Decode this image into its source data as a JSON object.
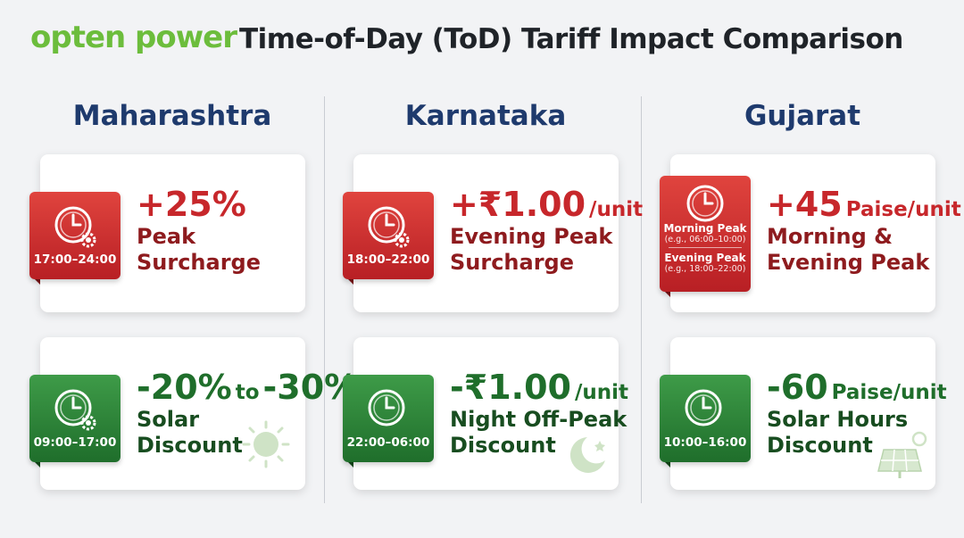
{
  "header": {
    "logo": "opten power",
    "title": "Time-of-Day (ToD) Tariff Impact Comparison"
  },
  "columns": [
    {
      "state": "Maharashtra",
      "cards": [
        {
          "kind": "peak",
          "badge": "17:00–24:00",
          "headline": [
            "+25%"
          ],
          "label": [
            "Peak",
            "Surcharge"
          ]
        },
        {
          "kind": "offpeak",
          "badge": "09:00–17:00",
          "headline": [
            "-20%",
            "to",
            "-30%"
          ],
          "label": [
            "Solar",
            "Discount"
          ]
        }
      ]
    },
    {
      "state": "Karnataka",
      "cards": [
        {
          "kind": "peak",
          "badge": "18:00–22:00",
          "headline": [
            "+₹1.00",
            "/unit"
          ],
          "label": [
            "Evening Peak",
            "Surcharge"
          ]
        },
        {
          "kind": "offpeak",
          "badge": "22:00–06:00",
          "headline": [
            "-₹1.00",
            "/unit"
          ],
          "label": [
            "Night Off-Peak",
            "Discount"
          ]
        }
      ]
    },
    {
      "state": "Gujarat",
      "cards": [
        {
          "kind": "peak",
          "badge": [
            {
              "name": "Morning Peak",
              "example": "(e.g., 06:00–10:00)"
            },
            {
              "name": "Evening Peak",
              "example": "(e.g., 18:00–22:00)"
            }
          ],
          "headline": [
            "+45",
            "Paise/unit"
          ],
          "label": [
            "Morning &",
            "Evening Peak"
          ]
        },
        {
          "kind": "offpeak",
          "badge": "10:00–16:00",
          "headline": [
            "-60",
            "Paise/unit"
          ],
          "label": [
            "Solar Hours",
            "Discount"
          ]
        }
      ]
    }
  ]
}
